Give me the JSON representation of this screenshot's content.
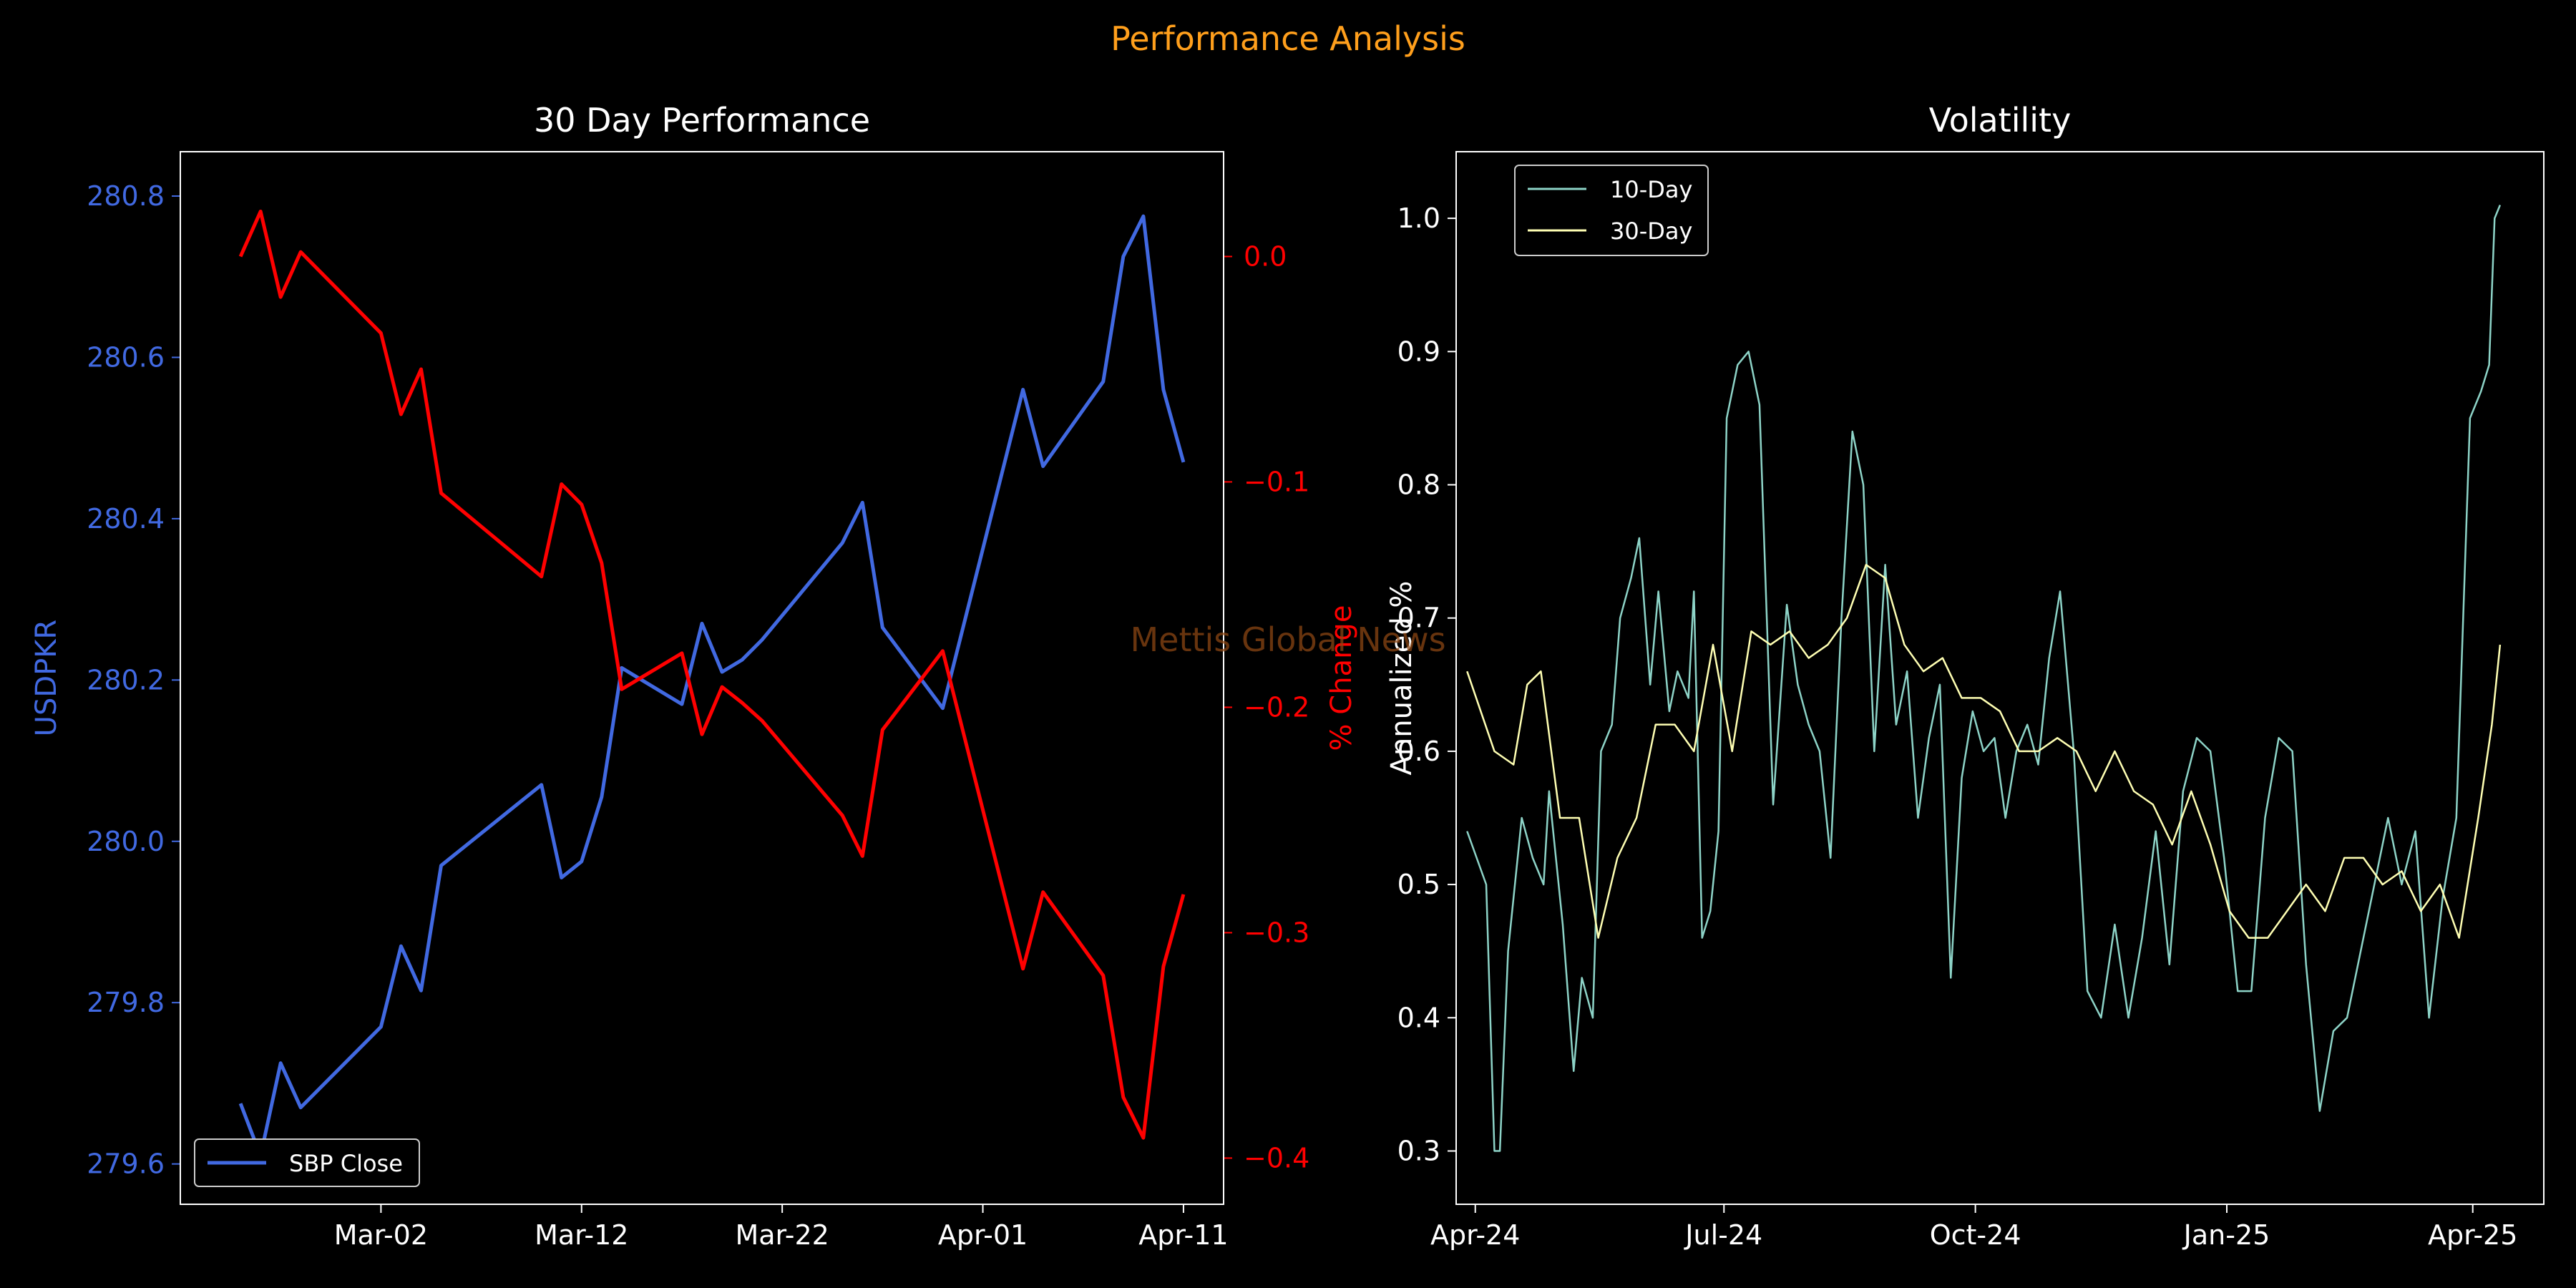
{
  "figure": {
    "suptitle": "Performance Analysis",
    "watermark": "Mettis Global News",
    "colors": {
      "background": "#000000",
      "suptitle": "#FF9F1C",
      "watermark": "#8B4513",
      "axes": "#FFFFFF",
      "price": "#4169E1",
      "pct": "#FF0000",
      "vol10": "#8DD3C7",
      "vol30": "#FFFFB3"
    }
  },
  "chart_data": [
    {
      "type": "line",
      "title": "30 Day Performance",
      "ylabel": "USDPKR",
      "y2label": "% Change",
      "x_tick_labels": [
        "Mar-02",
        "Mar-12",
        "Mar-22",
        "Apr-01",
        "Apr-11"
      ],
      "x_tick_dates": [
        "2025-03-02",
        "2025-03-12",
        "2025-03-22",
        "2025-04-01",
        "2025-04-11"
      ],
      "xlim": [
        "2025-02-20",
        "2025-04-13"
      ],
      "ylim": [
        279.55,
        280.855
      ],
      "y_ticks": [
        279.6,
        279.8,
        280.0,
        280.2,
        280.4,
        280.6,
        280.8
      ],
      "y_tick_labels": [
        "279.6",
        "279.8",
        "280.0",
        "280.2",
        "280.4",
        "280.6",
        "280.8"
      ],
      "y2lim": [
        -0.4205,
        0.0465
      ],
      "y2_ticks": [
        0.0,
        -0.1,
        -0.2,
        -0.3,
        -0.4
      ],
      "y2_tick_labels": [
        "0.0",
        "−0.1",
        "−0.2",
        "−0.3",
        "−0.4"
      ],
      "legend": {
        "position": "lower-left",
        "entries": [
          "SBP Close"
        ]
      },
      "x": [
        "2025-02-23",
        "2025-02-24",
        "2025-02-25",
        "2025-02-26",
        "2025-03-02",
        "2025-03-03",
        "2025-03-04",
        "2025-03-05",
        "2025-03-10",
        "2025-03-11",
        "2025-03-12",
        "2025-03-13",
        "2025-03-14",
        "2025-03-17",
        "2025-03-18",
        "2025-03-19",
        "2025-03-20",
        "2025-03-21",
        "2025-03-25",
        "2025-03-26",
        "2025-03-27",
        "2025-03-30",
        "2025-04-03",
        "2025-04-04",
        "2025-04-07",
        "2025-04-08",
        "2025-04-09",
        "2025-04-10",
        "2025-04-11"
      ],
      "series": [
        {
          "name": "SBP Close",
          "axis": "left",
          "values": [
            279.675,
            279.61,
            279.725,
            279.67,
            279.77,
            279.87,
            279.815,
            279.97,
            280.07,
            279.955,
            279.975,
            280.055,
            280.215,
            280.17,
            280.27,
            280.21,
            280.225,
            280.25,
            280.37,
            280.42,
            280.265,
            280.165,
            280.56,
            280.465,
            280.57,
            280.725,
            280.775,
            280.56,
            280.47
          ]
        },
        {
          "axis": "right",
          "values": [
            0.0,
            0.02,
            -0.018,
            0.002,
            -0.034,
            -0.07,
            -0.05,
            -0.105,
            -0.142,
            -0.101,
            -0.11,
            -0.136,
            -0.192,
            -0.176,
            -0.212,
            -0.191,
            -0.198,
            -0.206,
            -0.248,
            -0.266,
            -0.21,
            -0.175,
            -0.316,
            -0.282,
            -0.319,
            -0.373,
            -0.391,
            -0.315,
            -0.283
          ]
        }
      ]
    },
    {
      "type": "line",
      "title": "Volatility",
      "ylabel": "Annualized %",
      "x_tick_labels": [
        "Apr-24",
        "Jul-24",
        "Oct-24",
        "Jan-25",
        "Apr-25"
      ],
      "x_tick_dates": [
        "2024-04-01",
        "2024-07-01",
        "2024-10-01",
        "2025-01-01",
        "2025-04-01"
      ],
      "xlim": [
        "2024-03-25",
        "2025-04-27"
      ],
      "ylim": [
        0.26,
        1.05
      ],
      "y_ticks": [
        0.3,
        0.4,
        0.5,
        0.6,
        0.7,
        0.8,
        0.9,
        1.0
      ],
      "y_tick_labels": [
        "0.3",
        "0.4",
        "0.5",
        "0.6",
        "0.7",
        "0.8",
        "0.9",
        "1.0"
      ],
      "legend": {
        "position": "upper-left",
        "entries": [
          "10-Day",
          "30-Day"
        ]
      },
      "series": [
        {
          "name": "10-Day",
          "x": [
            "2024-03-29",
            "2024-04-05",
            "2024-04-08",
            "2024-04-10",
            "2024-04-13",
            "2024-04-18",
            "2024-04-22",
            "2024-04-26",
            "2024-04-28",
            "2024-05-03",
            "2024-05-07",
            "2024-05-10",
            "2024-05-14",
            "2024-05-17",
            "2024-05-21",
            "2024-05-24",
            "2024-05-28",
            "2024-05-31",
            "2024-06-04",
            "2024-06-07",
            "2024-06-11",
            "2024-06-14",
            "2024-06-18",
            "2024-06-20",
            "2024-06-23",
            "2024-06-26",
            "2024-06-29",
            "2024-07-02",
            "2024-07-06",
            "2024-07-10",
            "2024-07-14",
            "2024-07-19",
            "2024-07-24",
            "2024-07-28",
            "2024-08-01",
            "2024-08-05",
            "2024-08-09",
            "2024-08-13",
            "2024-08-17",
            "2024-08-21",
            "2024-08-25",
            "2024-08-29",
            "2024-09-02",
            "2024-09-06",
            "2024-09-10",
            "2024-09-14",
            "2024-09-18",
            "2024-09-22",
            "2024-09-26",
            "2024-09-30",
            "2024-10-04",
            "2024-10-08",
            "2024-10-12",
            "2024-10-16",
            "2024-10-20",
            "2024-10-24",
            "2024-10-28",
            "2024-11-01",
            "2024-11-06",
            "2024-11-11",
            "2024-11-16",
            "2024-11-21",
            "2024-11-26",
            "2024-12-01",
            "2024-12-06",
            "2024-12-11",
            "2024-12-16",
            "2024-12-21",
            "2024-12-26",
            "2024-12-31",
            "2025-01-05",
            "2025-01-10",
            "2025-01-15",
            "2025-01-20",
            "2025-01-25",
            "2025-01-30",
            "2025-02-04",
            "2025-02-09",
            "2025-02-14",
            "2025-02-19",
            "2025-02-24",
            "2025-03-01",
            "2025-03-06",
            "2025-03-11",
            "2025-03-16",
            "2025-03-21",
            "2025-03-26",
            "2025-03-31",
            "2025-04-04",
            "2025-04-07",
            "2025-04-09",
            "2025-04-11"
          ],
          "values": [
            0.54,
            0.5,
            0.3,
            0.3,
            0.45,
            0.55,
            0.52,
            0.5,
            0.57,
            0.47,
            0.36,
            0.43,
            0.4,
            0.6,
            0.62,
            0.7,
            0.73,
            0.76,
            0.65,
            0.72,
            0.63,
            0.66,
            0.64,
            0.72,
            0.46,
            0.48,
            0.54,
            0.85,
            0.89,
            0.9,
            0.86,
            0.56,
            0.71,
            0.65,
            0.62,
            0.6,
            0.52,
            0.7,
            0.84,
            0.8,
            0.6,
            0.74,
            0.62,
            0.66,
            0.55,
            0.61,
            0.65,
            0.43,
            0.58,
            0.63,
            0.6,
            0.61,
            0.55,
            0.6,
            0.62,
            0.59,
            0.67,
            0.72,
            0.6,
            0.42,
            0.4,
            0.47,
            0.4,
            0.46,
            0.54,
            0.44,
            0.57,
            0.61,
            0.6,
            0.52,
            0.42,
            0.42,
            0.55,
            0.61,
            0.6,
            0.44,
            0.33,
            0.39,
            0.4,
            0.45,
            0.5,
            0.55,
            0.5,
            0.54,
            0.4,
            0.49,
            0.55,
            0.85,
            0.87,
            0.89,
            1.0,
            1.01
          ]
        },
        {
          "name": "30-Day",
          "x": [
            "2024-03-29",
            "2024-04-08",
            "2024-04-15",
            "2024-04-20",
            "2024-04-25",
            "2024-05-02",
            "2024-05-09",
            "2024-05-16",
            "2024-05-23",
            "2024-05-30",
            "2024-06-06",
            "2024-06-13",
            "2024-06-20",
            "2024-06-27",
            "2024-07-04",
            "2024-07-11",
            "2024-07-18",
            "2024-07-25",
            "2024-08-01",
            "2024-08-08",
            "2024-08-15",
            "2024-08-22",
            "2024-08-29",
            "2024-09-05",
            "2024-09-12",
            "2024-09-19",
            "2024-09-26",
            "2024-10-03",
            "2024-10-10",
            "2024-10-17",
            "2024-10-24",
            "2024-10-31",
            "2024-11-07",
            "2024-11-14",
            "2024-11-21",
            "2024-11-28",
            "2024-12-05",
            "2024-12-12",
            "2024-12-19",
            "2024-12-26",
            "2025-01-02",
            "2025-01-09",
            "2025-01-16",
            "2025-01-23",
            "2025-01-30",
            "2025-02-06",
            "2025-02-13",
            "2025-02-20",
            "2025-02-27",
            "2025-03-06",
            "2025-03-13",
            "2025-03-20",
            "2025-03-27",
            "2025-04-03",
            "2025-04-08",
            "2025-04-11"
          ],
          "values": [
            0.66,
            0.6,
            0.59,
            0.65,
            0.66,
            0.55,
            0.55,
            0.46,
            0.52,
            0.55,
            0.62,
            0.62,
            0.6,
            0.68,
            0.6,
            0.69,
            0.68,
            0.69,
            0.67,
            0.68,
            0.7,
            0.74,
            0.73,
            0.68,
            0.66,
            0.67,
            0.64,
            0.64,
            0.63,
            0.6,
            0.6,
            0.61,
            0.6,
            0.57,
            0.6,
            0.57,
            0.56,
            0.53,
            0.57,
            0.53,
            0.48,
            0.46,
            0.46,
            0.48,
            0.5,
            0.48,
            0.52,
            0.52,
            0.5,
            0.51,
            0.48,
            0.5,
            0.46,
            0.55,
            0.62,
            0.68
          ]
        }
      ]
    }
  ]
}
